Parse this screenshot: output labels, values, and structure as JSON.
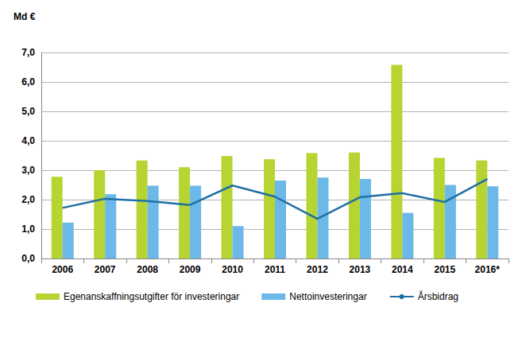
{
  "chart_data": {
    "type": "bar",
    "ylabel": "Md €",
    "categories": [
      "2006",
      "2007",
      "2008",
      "2009",
      "2010",
      "2011",
      "2012",
      "2013",
      "2014",
      "2015",
      "2016*"
    ],
    "series": [
      {
        "name": "Egenanskaffningsutgifter för investeringar",
        "type": "bar",
        "color": "#b6d432",
        "values": [
          2.78,
          3.0,
          3.33,
          3.1,
          3.48,
          3.37,
          3.58,
          3.6,
          6.58,
          3.42,
          3.33
        ]
      },
      {
        "name": "Nettoinvesteringar",
        "type": "bar",
        "color": "#6cb8e8",
        "values": [
          1.22,
          2.18,
          2.47,
          2.47,
          1.1,
          2.65,
          2.75,
          2.7,
          1.55,
          2.5,
          2.45
        ]
      },
      {
        "name": "Årsbidrag",
        "type": "line",
        "color": "#1f70a6",
        "values": [
          1.72,
          2.03,
          1.95,
          1.82,
          2.48,
          2.1,
          1.35,
          2.08,
          2.22,
          1.92,
          2.7
        ]
      }
    ],
    "ylim": [
      0,
      7
    ],
    "yticks": [
      {
        "value": 0,
        "label": "0,0"
      },
      {
        "value": 1,
        "label": "1,0"
      },
      {
        "value": 2,
        "label": "2,0"
      },
      {
        "value": 3,
        "label": "3,0"
      },
      {
        "value": 4,
        "label": "4,0"
      },
      {
        "value": 5,
        "label": "5,0"
      },
      {
        "value": 6,
        "label": "6,0"
      },
      {
        "value": 7,
        "label": "7,0"
      }
    ],
    "grid": true,
    "legend": "bottom"
  }
}
